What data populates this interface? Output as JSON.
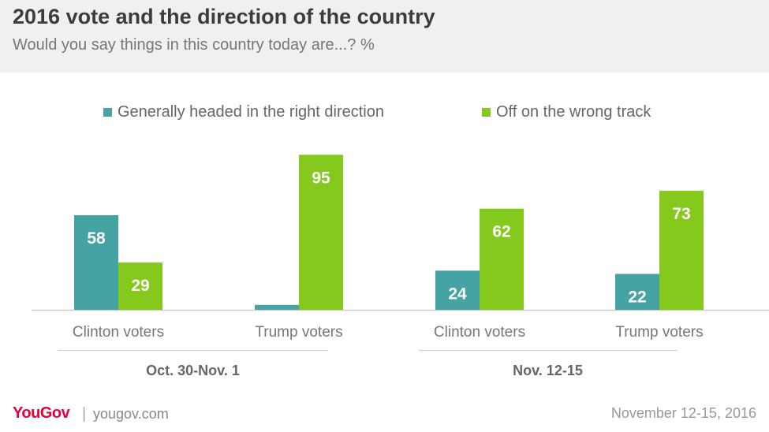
{
  "header": {
    "title": "2016 vote and the direction of the country",
    "subtitle": "Would you say things in this country today are...? %"
  },
  "colors": {
    "right_direction": "#46a3a4",
    "wrong_track": "#84c91c",
    "baseline": "#cccccc",
    "axis_text": "#777777",
    "group_text": "#666666",
    "brand": "#e4003b"
  },
  "chart_data": {
    "type": "bar",
    "groups": [
      {
        "label": "Oct. 30-Nov. 1",
        "categories": [
          "Clinton voters",
          "Trump voters"
        ]
      },
      {
        "label": "Nov. 12-15",
        "categories": [
          "Clinton voters",
          "Trump voters"
        ]
      }
    ],
    "categories": [
      "Clinton voters",
      "Trump voters",
      "Clinton voters",
      "Trump voters"
    ],
    "series": [
      {
        "name": "Generally headed in the right direction",
        "values": [
          58,
          3,
          24,
          22
        ],
        "labels": [
          "58",
          "",
          "24",
          "22"
        ]
      },
      {
        "name": "Off on the wrong track",
        "values": [
          29,
          95,
          62,
          73
        ],
        "labels": [
          "29",
          "95",
          "62",
          "73"
        ]
      }
    ],
    "ylim": [
      0,
      100
    ],
    "grid": false,
    "legend": "top"
  },
  "footer": {
    "brand": "YouGov",
    "separator": "|",
    "site": "yougov.com",
    "date": "November 12-15, 2016"
  }
}
